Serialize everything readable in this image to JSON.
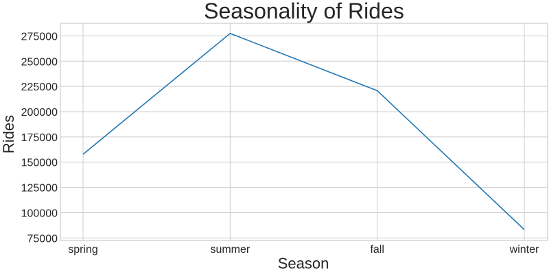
{
  "chart_data": {
    "type": "line",
    "title": "Seasonality of Rides",
    "xlabel": "Season",
    "ylabel": "Rides",
    "categories": [
      "spring",
      "summer",
      "fall",
      "winter"
    ],
    "series": [
      {
        "values": [
          157800,
          277500,
          220800,
          83200
        ],
        "color": "#1f77b4"
      }
    ],
    "ylim": [
      72500,
      287500
    ],
    "yticks": [
      75000,
      100000,
      125000,
      150000,
      175000,
      200000,
      225000,
      250000,
      275000
    ],
    "ytick_labels": [
      "75000",
      "100000",
      "125000",
      "150000",
      "175000",
      "200000",
      "225000",
      "250000",
      "275000"
    ],
    "grid": true,
    "legend": "none",
    "colors": {
      "grid": "#cccccc",
      "text": "#262626",
      "background": "#ffffff"
    }
  }
}
